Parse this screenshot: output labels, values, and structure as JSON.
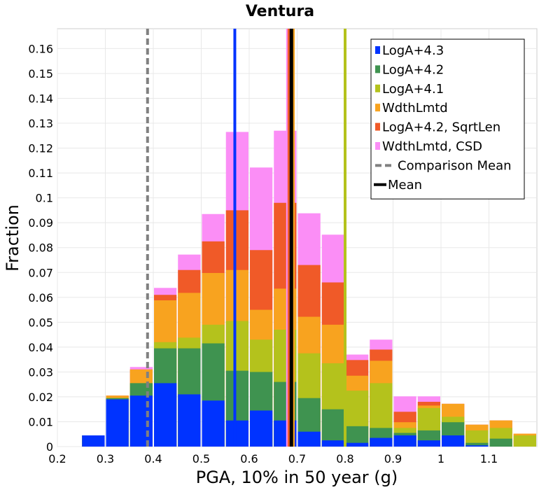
{
  "chart_data": {
    "type": "bar",
    "title": "Ventura",
    "xlabel": "PGA, 10% in 50 year (g)",
    "ylabel": "Fraction",
    "xlim": [
      0.2,
      1.2
    ],
    "ylim": [
      0,
      0.168
    ],
    "x_ticks": [
      "0.2",
      "0.3",
      "0.4",
      "0.5",
      "0.6",
      "0.7",
      "0.8",
      "0.9",
      "1",
      "1.1"
    ],
    "x_tick_values": [
      0.2,
      0.3,
      0.4,
      0.5,
      0.6,
      0.7,
      0.8,
      0.9,
      1.0,
      1.1
    ],
    "y_ticks": [
      "0",
      "0.01",
      "0.02",
      "0.03",
      "0.04",
      "0.05",
      "0.06",
      "0.07",
      "0.08",
      "0.09",
      "0.1",
      "0.11",
      "0.12",
      "0.13",
      "0.14",
      "0.15",
      "0.16"
    ],
    "y_tick_values": [
      0,
      0.01,
      0.02,
      0.03,
      0.04,
      0.05,
      0.06,
      0.07,
      0.08,
      0.09,
      0.1,
      0.11,
      0.12,
      0.13,
      0.14,
      0.15,
      0.16
    ],
    "grid": true,
    "legend_position": "top-right",
    "bin_width": 0.05,
    "bins": [
      0.275,
      0.325,
      0.375,
      0.425,
      0.475,
      0.525,
      0.575,
      0.625,
      0.675,
      0.725,
      0.775,
      0.825,
      0.875,
      0.925,
      0.975,
      1.025,
      1.075,
      1.125,
      1.175
    ],
    "series": [
      {
        "name": "LogA+4.3",
        "color": "#0033ff",
        "cumulative": [
          0.0045,
          0.019,
          0.0205,
          0.0255,
          0.021,
          0.0185,
          0.0105,
          0.0145,
          0.0105,
          0.006,
          0.0025,
          0.0015,
          0.0035,
          0.0045,
          0.0025,
          0.0045,
          0.0005,
          0,
          0
        ]
      },
      {
        "name": "LogA+4.2",
        "color": "#3f9350",
        "cumulative": [
          0.0045,
          0.0195,
          0.0255,
          0.0395,
          0.0395,
          0.0415,
          0.0305,
          0.03,
          0.026,
          0.0195,
          0.015,
          0.0082,
          0.0075,
          0.0055,
          0.0065,
          0.0098,
          0.0015,
          0.0032,
          0
        ]
      },
      {
        "name": "LogA+4.1",
        "color": "#b4c21c",
        "cumulative": [
          0.0045,
          0.0195,
          0.0255,
          0.042,
          0.0438,
          0.049,
          0.0505,
          0.043,
          0.047,
          0.0375,
          0.0335,
          0.0225,
          0.0255,
          0.0075,
          0.0155,
          0.012,
          0.0065,
          0.0075,
          0.0045
        ]
      },
      {
        "name": "WdthLmtd",
        "color": "#f8a31f",
        "cumulative": [
          0.0045,
          0.0205,
          0.031,
          0.0588,
          0.0618,
          0.0698,
          0.071,
          0.055,
          0.0635,
          0.0522,
          0.049,
          0.0285,
          0.0345,
          0.0098,
          0.0165,
          0.0172,
          0.0088,
          0.0105,
          0.0052
        ]
      },
      {
        "name": "LogA+4.2, SqrtLen",
        "color": "#f05a28",
        "cumulative": [
          0.0045,
          0.0205,
          0.031,
          0.061,
          0.071,
          0.0825,
          0.095,
          0.079,
          0.098,
          0.073,
          0.066,
          0.0348,
          0.039,
          0.014,
          0.018,
          0.0172,
          0.0088,
          0.0105,
          0.0052
        ]
      },
      {
        "name": "WdthLmtd, CSD",
        "color": "#fb8ef6",
        "cumulative": [
          0.0045,
          0.0205,
          0.032,
          0.0638,
          0.0772,
          0.0935,
          0.1265,
          0.1122,
          0.127,
          0.0938,
          0.0852,
          0.037,
          0.043,
          0.0202,
          0.0202,
          0.0172,
          0.0088,
          0.0105,
          0.0052
        ]
      }
    ],
    "vertical_lines": [
      {
        "name": "LogA+4.3",
        "x": 0.57,
        "color": "#0033ff",
        "style": "solid"
      },
      {
        "name": "WdthLmtd, CSD",
        "x": 0.68,
        "color": "#fb8ef6",
        "style": "solid"
      },
      {
        "name": "LogA+4.2, SqrtLen",
        "x": 0.683,
        "color": "#f05a28",
        "style": "solid"
      },
      {
        "name": "WdthLmtd",
        "x": 0.692,
        "color": "#f8a31f",
        "style": "solid"
      },
      {
        "name": "LogA+4.1",
        "x": 0.8,
        "color": "#b4c21c",
        "style": "solid"
      },
      {
        "name": "Comparison Mean",
        "x": 0.388,
        "color": "#808080",
        "style": "dashed"
      },
      {
        "name": "Mean",
        "x": 0.688,
        "color": "#000000",
        "style": "solid"
      }
    ],
    "legend": [
      {
        "label": "LogA+4.3",
        "color": "#0033ff",
        "kind": "box"
      },
      {
        "label": "LogA+4.2",
        "color": "#3f9350",
        "kind": "box"
      },
      {
        "label": "LogA+4.1",
        "color": "#b4c21c",
        "kind": "box"
      },
      {
        "label": "WdthLmtd",
        "color": "#f8a31f",
        "kind": "box"
      },
      {
        "label": "LogA+4.2, SqrtLen",
        "color": "#f05a28",
        "kind": "box"
      },
      {
        "label": "WdthLmtd, CSD",
        "color": "#fb8ef6",
        "kind": "box"
      },
      {
        "label": "Comparison Mean",
        "color": "#808080",
        "kind": "dashed"
      },
      {
        "label": "Mean",
        "color": "#000000",
        "kind": "line"
      }
    ]
  }
}
